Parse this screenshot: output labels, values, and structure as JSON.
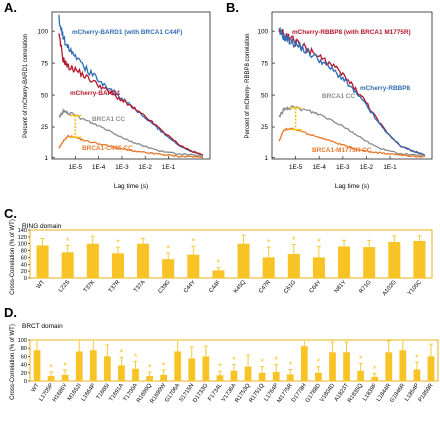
{
  "panelA": {
    "letter": "A.",
    "ylabel": "Percent of mCherry-BARD1 correlation",
    "xlabel": "Lag time (s)",
    "series_labels": {
      "blue": "mCherry-BARD1 (with BRCA1 C44F)",
      "red": "mCherry-BARD1",
      "gray": "BRCA1 CC",
      "orange": "BRCA1-C44F CC"
    }
  },
  "panelB": {
    "letter": "B.",
    "ylabel": "Percent of mCherry- RBBP8 correlation",
    "xlabel": "Lag time (s)",
    "series_labels": {
      "red": "mCherry-RBBP8 (with BRCA1 M1775R)",
      "blue": "mCherry-RBBP8",
      "gray": "BRCA1 CC",
      "orange": "BRCA1-M1775R CC"
    }
  },
  "panelC": {
    "letter": "C.",
    "title": "RING domain",
    "ylabel": "Cross-Correlation (% of WT)"
  },
  "panelD": {
    "letter": "D.",
    "title": "BRCT domain",
    "ylabel": "Cross-Correlation (% of WT)"
  },
  "colors": {
    "blue": "#2f6db4",
    "red": "#b2182b",
    "gray": "#8c8c8c",
    "orange": "#e8792b",
    "bar": "#f7c325",
    "bar_edge": "#e8a800"
  },
  "chart_data": [
    {
      "id": "A",
      "type": "line",
      "xscale": "log",
      "xlim": [
        1e-06,
        6
      ],
      "ylim": [
        0,
        115
      ],
      "x_tick_labels": [
        "1E-5",
        "1E-4",
        "1E-3",
        "1E-2",
        "1E-1"
      ],
      "y_tick_labels": [
        "1",
        "25",
        "50",
        "75",
        "100"
      ],
      "series": [
        {
          "name": "mCherry-BARD1 (with BRCA1 C44F)",
          "color": "blue",
          "x": [
            2e-06,
            3e-06,
            5e-06,
            1e-05,
            3e-05,
            0.0001,
            0.0003,
            0.001,
            0.003,
            0.01,
            0.03,
            0.1,
            0.3,
            1,
            3
          ],
          "y": [
            110,
            95,
            88,
            82,
            70,
            62,
            55,
            47,
            40,
            32,
            25,
            17,
            10,
            6,
            3
          ]
        },
        {
          "name": "mCherry-BARD1",
          "color": "red",
          "x": [
            2e-06,
            3e-06,
            5e-06,
            1e-05,
            3e-05,
            0.0001,
            0.0003,
            0.001,
            0.003,
            0.01,
            0.03,
            0.1,
            0.3,
            1,
            3
          ],
          "y": [
            96,
            78,
            72,
            70,
            64,
            58,
            52,
            46,
            40,
            33,
            26,
            18,
            11,
            6,
            3
          ]
        },
        {
          "name": "BRCA1 CC",
          "color": "gray",
          "x": [
            2e-06,
            3e-06,
            5e-06,
            1e-05,
            3e-05,
            0.0001,
            0.0003,
            0.001,
            0.003,
            0.01,
            0.03,
            0.1,
            0.3,
            1,
            3
          ],
          "y": [
            33,
            37,
            36,
            34,
            30,
            26,
            22,
            17,
            13,
            10,
            7,
            5,
            4,
            3,
            2
          ]
        },
        {
          "name": "BRCA1-C44F CC",
          "color": "orange",
          "x": [
            2e-06,
            3e-06,
            5e-06,
            1e-05,
            3e-05,
            0.0001,
            0.0003,
            0.001,
            0.003,
            0.01,
            0.03,
            0.1,
            0.3,
            1,
            3
          ],
          "y": [
            8,
            14,
            18,
            17,
            14,
            12,
            10,
            8,
            6,
            5,
            4,
            3,
            2,
            2,
            1
          ]
        }
      ]
    },
    {
      "id": "B",
      "type": "line",
      "xscale": "log",
      "xlim": [
        1e-06,
        6
      ],
      "ylim": [
        0,
        115
      ],
      "x_tick_labels": [
        "1E-5",
        "1E-4",
        "1E-3",
        "1E-2",
        "1E-1"
      ],
      "y_tick_labels": [
        "1",
        "25",
        "50",
        "75",
        "100"
      ],
      "series": [
        {
          "name": "mCherry-RBBP8 (with BRCA1 M1775R)",
          "color": "red",
          "x": [
            2e-06,
            3e-06,
            5e-06,
            1e-05,
            3e-05,
            0.0001,
            0.0003,
            0.001,
            0.003,
            0.01,
            0.03,
            0.1,
            0.3,
            1,
            3
          ],
          "y": [
            100,
            98,
            95,
            92,
            86,
            80,
            74,
            66,
            56,
            44,
            30,
            18,
            10,
            6,
            3
          ]
        },
        {
          "name": "mCherry-RBBP8",
          "color": "blue",
          "x": [
            2e-06,
            3e-06,
            5e-06,
            1e-05,
            3e-05,
            0.0001,
            0.0003,
            0.001,
            0.003,
            0.01,
            0.03,
            0.1,
            0.3,
            1,
            3
          ],
          "y": [
            100,
            96,
            93,
            90,
            84,
            78,
            71,
            63,
            53,
            42,
            29,
            18,
            10,
            6,
            3
          ]
        },
        {
          "name": "BRCA1 CC",
          "color": "gray",
          "x": [
            2e-06,
            3e-06,
            5e-06,
            1e-05,
            3e-05,
            0.0001,
            0.0003,
            0.001,
            0.003,
            0.01,
            0.03,
            0.1,
            0.3,
            1,
            3
          ],
          "y": [
            33,
            38,
            40,
            40,
            38,
            35,
            31,
            26,
            20,
            14,
            9,
            6,
            4,
            3,
            2
          ]
        },
        {
          "name": "BRCA1-M1775R CC",
          "color": "orange",
          "x": [
            2e-06,
            3e-06,
            5e-06,
            1e-05,
            3e-05,
            0.0001,
            0.0003,
            0.001,
            0.003,
            0.01,
            0.03,
            0.1,
            0.3,
            1,
            3
          ],
          "y": [
            14,
            22,
            24,
            23,
            20,
            17,
            14,
            11,
            8,
            6,
            5,
            4,
            3,
            2,
            2
          ]
        }
      ]
    },
    {
      "id": "C",
      "type": "bar",
      "ylim": [
        0,
        140
      ],
      "y_tick_labels": [
        "0",
        "20",
        "40",
        "60",
        "80",
        "100",
        "120",
        "140"
      ],
      "categories": [
        "WT",
        "L22S",
        "T37K",
        "T37R",
        "T37A",
        "C39G",
        "C44Y",
        "C44F",
        "K45Q",
        "C47R",
        "C61G",
        "C64Y",
        "N81Y",
        "R71G",
        "A102G",
        "Y105C"
      ],
      "values": [
        95,
        75,
        100,
        72,
        100,
        55,
        68,
        22,
        100,
        60,
        70,
        60,
        92,
        90,
        105,
        108
      ],
      "errors": [
        20,
        20,
        22,
        18,
        15,
        18,
        25,
        8,
        25,
        30,
        28,
        32,
        18,
        20,
        18,
        15
      ],
      "significant": [
        false,
        true,
        false,
        true,
        false,
        true,
        true,
        true,
        false,
        true,
        true,
        true,
        false,
        false,
        false,
        false
      ]
    },
    {
      "id": "D",
      "type": "bar",
      "ylim": [
        0,
        100
      ],
      "y_tick_labels": [
        "0",
        "20",
        "40",
        "60",
        "80",
        "100"
      ],
      "categories": [
        "WT",
        "L1705P",
        "H1686Y",
        "M1652I",
        "L1664P",
        "T1685I",
        "T1691A",
        "T1700A",
        "R1699Q",
        "R1699W",
        "G1706A",
        "S1715N",
        "D1733G",
        "F1734L",
        "V1736A",
        "R1753Q",
        "R1751Q",
        "L1764P",
        "M1775R",
        "D1778H",
        "G1788D",
        "V1804D",
        "A1823T",
        "R1835Q",
        "L1839F",
        "L1844R",
        "G1846R",
        "L1854P",
        "P1859R"
      ],
      "values": [
        75,
        12,
        15,
        72,
        75,
        60,
        38,
        30,
        12,
        15,
        72,
        55,
        60,
        14,
        25,
        35,
        20,
        22,
        16,
        85,
        20,
        70,
        70,
        25,
        10,
        70,
        75,
        28,
        60
      ],
      "errors": [
        28,
        10,
        12,
        35,
        30,
        28,
        20,
        18,
        10,
        12,
        30,
        28,
        25,
        10,
        15,
        28,
        15,
        18,
        12,
        28,
        15,
        25,
        25,
        18,
        8,
        28,
        25,
        18,
        30
      ],
      "significant": [
        false,
        true,
        true,
        false,
        false,
        false,
        true,
        true,
        true,
        true,
        false,
        false,
        false,
        true,
        true,
        false,
        true,
        true,
        true,
        false,
        true,
        false,
        false,
        true,
        true,
        false,
        false,
        true,
        false
      ]
    }
  ]
}
